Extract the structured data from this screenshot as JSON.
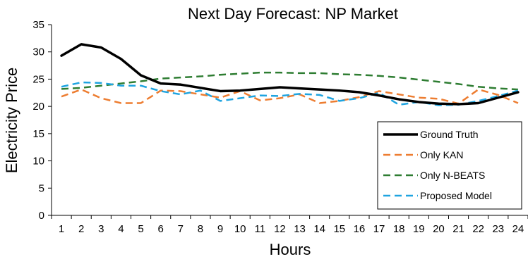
{
  "chart_data": {
    "type": "line",
    "title": "Next Day Forecast: NP Market",
    "xlabel": "Hours",
    "ylabel": "Electricity Price",
    "x": [
      1,
      2,
      3,
      4,
      5,
      6,
      7,
      8,
      9,
      10,
      11,
      12,
      13,
      14,
      15,
      16,
      17,
      18,
      19,
      20,
      21,
      22,
      23,
      24
    ],
    "ylim": [
      0,
      35
    ],
    "yticks": [
      0,
      5,
      10,
      15,
      20,
      25,
      30,
      35
    ],
    "grid": false,
    "legend_position": "bottom-right",
    "series": [
      {
        "name": "Ground Truth",
        "color": "#000000",
        "style": "solid",
        "values": [
          29.3,
          31.4,
          30.8,
          28.7,
          25.7,
          24.2,
          24.0,
          23.4,
          22.8,
          22.9,
          23.2,
          23.5,
          23.3,
          23.1,
          22.9,
          22.6,
          22.0,
          21.3,
          20.8,
          20.5,
          20.4,
          20.6,
          21.6,
          22.6
        ]
      },
      {
        "name": "Only KAN",
        "color": "#ED7D31",
        "style": "dashed",
        "values": [
          21.8,
          23.1,
          21.5,
          20.6,
          20.6,
          22.9,
          22.8,
          22.2,
          21.6,
          22.8,
          21.1,
          21.5,
          22.2,
          20.6,
          21.0,
          21.7,
          22.8,
          22.2,
          21.6,
          21.4,
          20.5,
          23.1,
          22.1,
          20.6
        ]
      },
      {
        "name": "Only N-BEATS",
        "color": "#2E7D32",
        "style": "dashed",
        "values": [
          23.2,
          23.4,
          23.8,
          24.2,
          24.6,
          25.1,
          25.3,
          25.5,
          25.8,
          26.0,
          26.2,
          26.2,
          26.1,
          26.1,
          25.9,
          25.8,
          25.6,
          25.3,
          24.9,
          24.5,
          24.1,
          23.6,
          23.3,
          23.1
        ]
      },
      {
        "name": "Proposed Model",
        "color": "#1FA4E0",
        "style": "dashed",
        "values": [
          23.6,
          24.4,
          24.3,
          23.8,
          23.8,
          22.8,
          22.2,
          22.9,
          21.0,
          21.5,
          22.0,
          21.9,
          22.3,
          22.1,
          21.0,
          21.5,
          22.5,
          20.3,
          20.8,
          20.2,
          20.3,
          21.0,
          21.9,
          22.9
        ]
      }
    ]
  }
}
